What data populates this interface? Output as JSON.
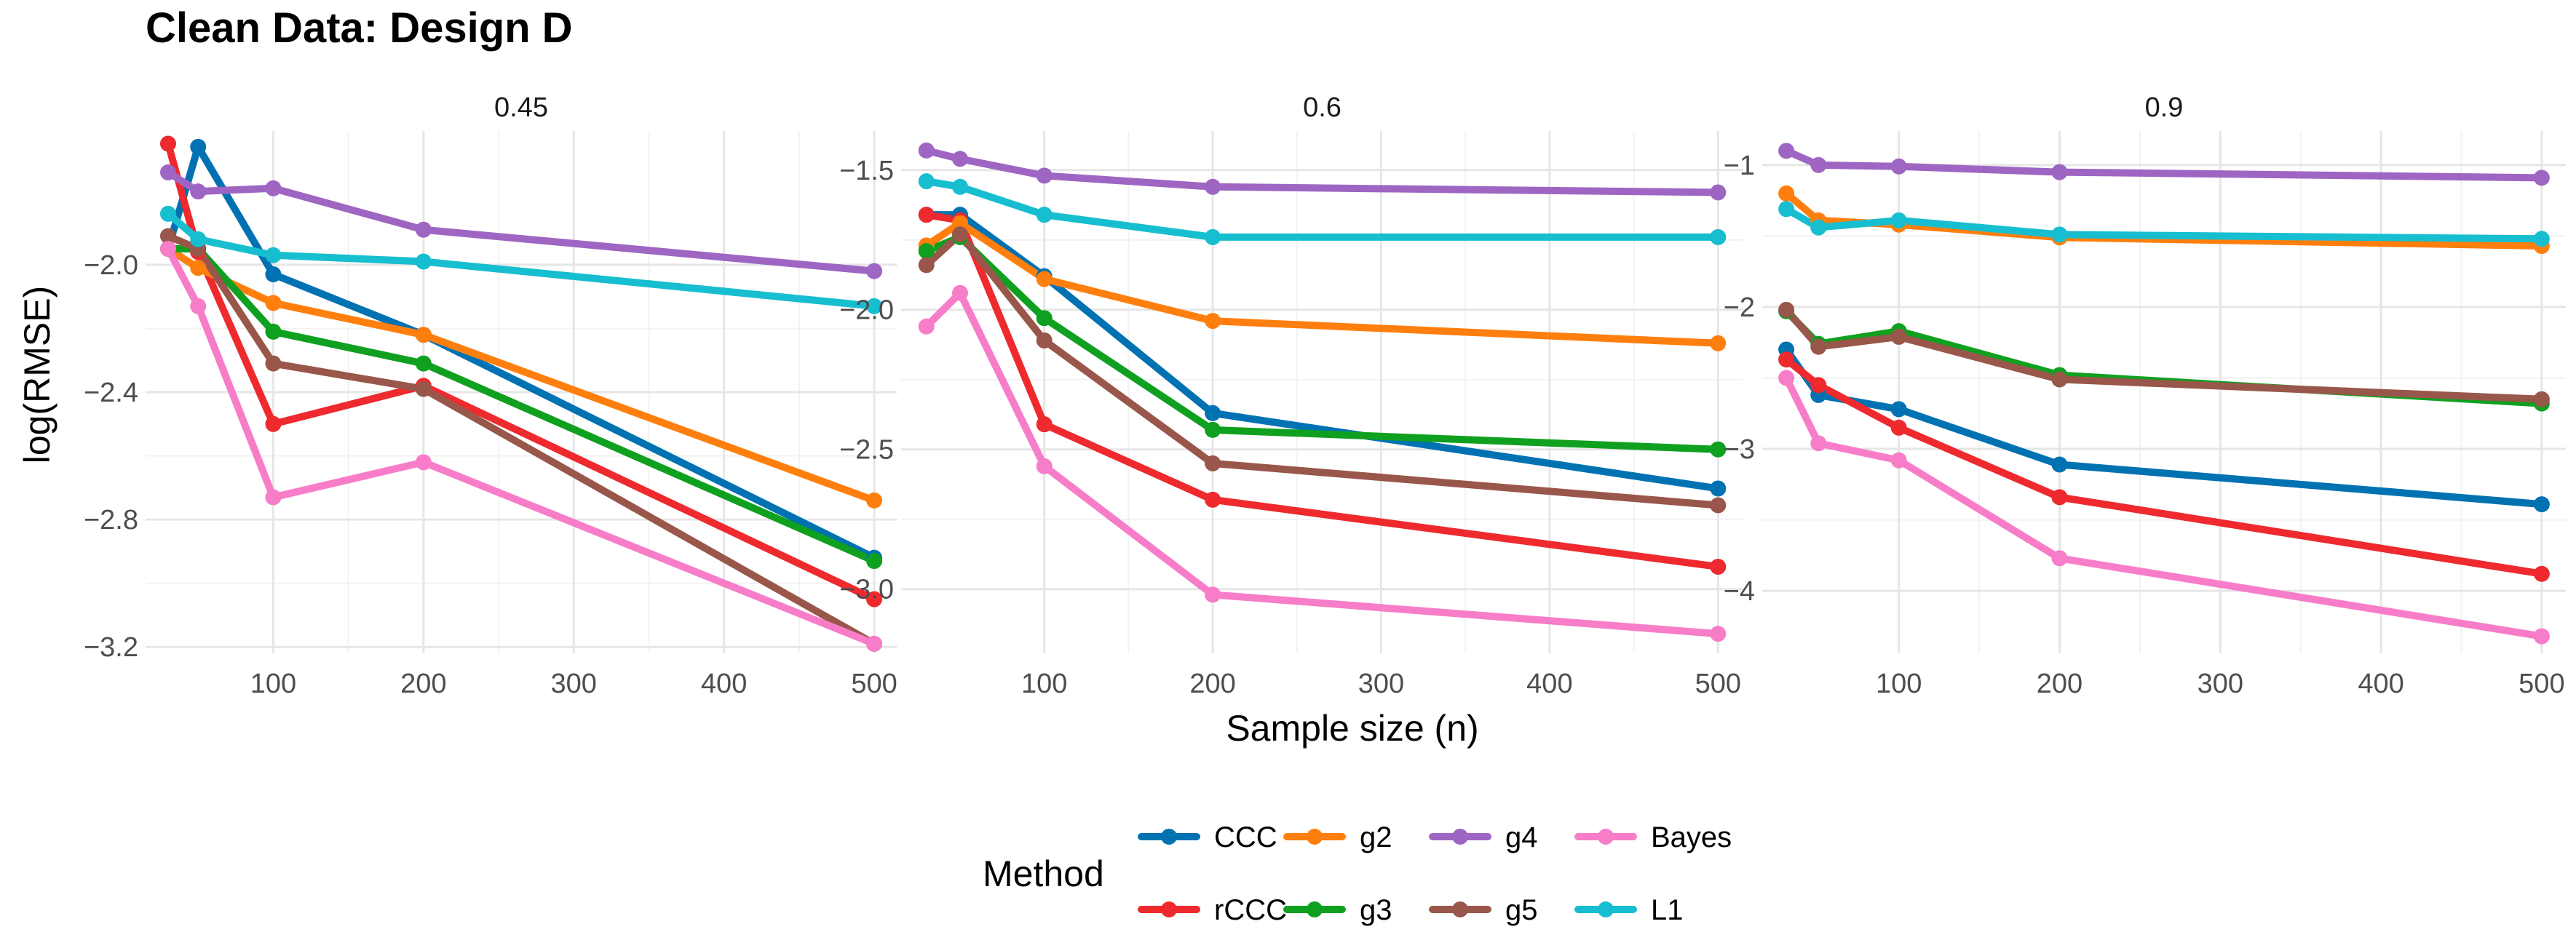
{
  "title": "Clean Data: Design D",
  "chart_data": {
    "type": "line",
    "title": "Clean Data: Design D",
    "xlabel": "Sample size (n)",
    "ylabel": "log(RMSE)",
    "legend_title": "Method",
    "legend_position": "bottom",
    "grid": true,
    "x": [
      30,
      50,
      100,
      200,
      500
    ],
    "x_ticks": [
      100,
      200,
      300,
      400,
      500
    ],
    "xlim": [
      15,
      515
    ],
    "method_order": [
      "CCC",
      "g2",
      "g4",
      "Bayes",
      "rCCC",
      "g3",
      "g5",
      "L1"
    ],
    "colors": {
      "CCC": "#0072B2",
      "rCCC": "#EE2A2E",
      "g2": "#FF7F0E",
      "g3": "#0FA020",
      "g4": "#9E66C2",
      "g5": "#98574A",
      "Bayes": "#F77DC9",
      "L1": "#17BECF"
    },
    "panels": [
      {
        "label": "0.45",
        "ylim": [
          -3.22,
          -1.58
        ],
        "y_ticks": [
          -2.0,
          -2.4,
          -2.8,
          -3.2
        ],
        "y_tick_labels": [
          "−2.0",
          "−2.4",
          "−2.8",
          "−3.2"
        ],
        "series": [
          {
            "name": "CCC",
            "values": [
              -1.95,
              -1.63,
              -2.03,
              -2.22,
              -2.92
            ]
          },
          {
            "name": "rCCC",
            "values": [
              -1.62,
              -1.96,
              -2.5,
              -2.38,
              -3.05
            ]
          },
          {
            "name": "g2",
            "values": [
              -1.95,
              -2.01,
              -2.12,
              -2.22,
              -2.74
            ]
          },
          {
            "name": "g3",
            "values": [
              -1.95,
              -1.95,
              -2.21,
              -2.31,
              -2.93
            ]
          },
          {
            "name": "g4",
            "values": [
              -1.71,
              -1.77,
              -1.76,
              -1.89,
              -2.02
            ]
          },
          {
            "name": "g5",
            "values": [
              -1.91,
              -1.95,
              -2.31,
              -2.39,
              -3.19
            ]
          },
          {
            "name": "Bayes",
            "values": [
              -1.95,
              -2.13,
              -2.73,
              -2.62,
              -3.19
            ]
          },
          {
            "name": "L1",
            "values": [
              -1.84,
              -1.92,
              -1.97,
              -1.99,
              -2.13
            ]
          }
        ]
      },
      {
        "label": "0.6",
        "ylim": [
          -3.23,
          -1.36
        ],
        "y_ticks": [
          -1.5,
          -2.0,
          -2.5,
          -3.0
        ],
        "y_tick_labels": [
          "−1.5",
          "−2.0",
          "−2.5",
          "−3.0"
        ],
        "series": [
          {
            "name": "CCC",
            "values": [
              -1.66,
              -1.66,
              -1.88,
              -2.37,
              -2.64
            ]
          },
          {
            "name": "rCCC",
            "values": [
              -1.66,
              -1.68,
              -2.41,
              -2.68,
              -2.92
            ]
          },
          {
            "name": "g2",
            "values": [
              -1.77,
              -1.69,
              -1.89,
              -2.04,
              -2.12
            ]
          },
          {
            "name": "g3",
            "values": [
              -1.79,
              -1.74,
              -2.03,
              -2.43,
              -2.5
            ]
          },
          {
            "name": "g4",
            "values": [
              -1.43,
              -1.46,
              -1.52,
              -1.56,
              -1.58
            ]
          },
          {
            "name": "g5",
            "values": [
              -1.84,
              -1.73,
              -2.11,
              -2.55,
              -2.7
            ]
          },
          {
            "name": "Bayes",
            "values": [
              -2.06,
              -1.94,
              -2.56,
              -3.02,
              -3.16
            ]
          },
          {
            "name": "L1",
            "values": [
              -1.54,
              -1.56,
              -1.66,
              -1.74,
              -1.74
            ]
          }
        ]
      },
      {
        "label": "0.9",
        "ylim": [
          -4.44,
          -0.76
        ],
        "y_ticks": [
          -1,
          -2,
          -3,
          -4
        ],
        "y_tick_labels": [
          "−1",
          "−2",
          "−3",
          "−4"
        ],
        "series": [
          {
            "name": "CCC",
            "values": [
              -2.3,
              -2.62,
              -2.72,
              -3.11,
              -3.39
            ]
          },
          {
            "name": "rCCC",
            "values": [
              -2.37,
              -2.55,
              -2.85,
              -3.34,
              -3.88
            ]
          },
          {
            "name": "g2",
            "values": [
              -1.2,
              -1.39,
              -1.42,
              -1.51,
              -1.57
            ]
          },
          {
            "name": "g3",
            "values": [
              -2.03,
              -2.26,
              -2.17,
              -2.48,
              -2.68
            ]
          },
          {
            "name": "g4",
            "values": [
              -0.9,
              -1.0,
              -1.01,
              -1.05,
              -1.09
            ]
          },
          {
            "name": "g5",
            "values": [
              -2.02,
              -2.28,
              -2.21,
              -2.51,
              -2.65
            ]
          },
          {
            "name": "Bayes",
            "values": [
              -2.5,
              -2.96,
              -3.08,
              -3.77,
              -4.32
            ]
          },
          {
            "name": "L1",
            "values": [
              -1.31,
              -1.44,
              -1.39,
              -1.49,
              -1.52
            ]
          }
        ]
      }
    ]
  }
}
